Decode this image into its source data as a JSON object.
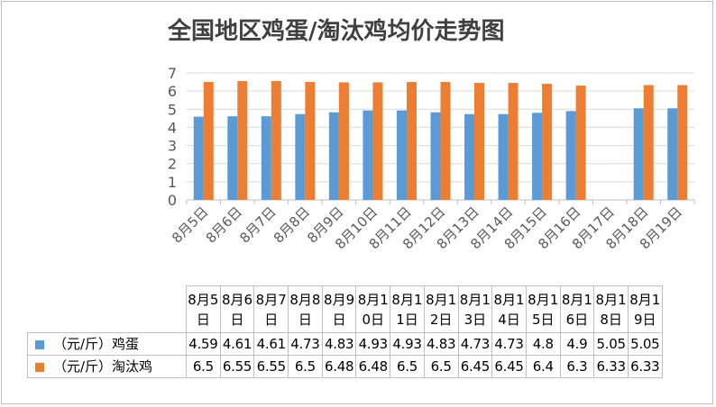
{
  "chart_data": {
    "type": "bar",
    "title": "全国地区鸡蛋/淘汰鸡均价走势图",
    "categories": [
      "8月5日",
      "8月6日",
      "8月7日",
      "8月8日",
      "8月9日",
      "8月10日",
      "8月11日",
      "8月12日",
      "8月13日",
      "8月14日",
      "8月15日",
      "8月16日",
      "8月17日",
      "8月18日",
      "8月19日"
    ],
    "series": [
      {
        "name": "（元/斤）鸡蛋",
        "color": "#5b9bd5",
        "values": [
          4.59,
          4.61,
          4.61,
          4.73,
          4.83,
          4.93,
          4.93,
          4.83,
          4.73,
          4.73,
          4.8,
          4.9,
          null,
          5.05,
          5.05
        ]
      },
      {
        "name": "（元/斤）淘汰鸡",
        "color": "#ed7d31",
        "values": [
          6.5,
          6.55,
          6.55,
          6.5,
          6.48,
          6.48,
          6.5,
          6.5,
          6.45,
          6.45,
          6.4,
          6.3,
          null,
          6.33,
          6.33
        ]
      }
    ],
    "ylim": [
      0,
      7
    ],
    "yticks": [
      0,
      1,
      2,
      3,
      4,
      5,
      6,
      7
    ],
    "grid": true,
    "legend": "data-table",
    "table": {
      "headers": [
        "8月5日",
        "8月6日",
        "8月7日",
        "8月8日",
        "8月9日",
        "8月10日",
        "8月11日",
        "8月12日",
        "8月13日",
        "8月14日",
        "8月15日",
        "8月16日",
        "8月18日",
        "8月19日"
      ],
      "rows": [
        {
          "label": "（元/斤）鸡蛋",
          "color": "#5b9bd5",
          "values": [
            "4.59",
            "4.61",
            "4.61",
            "4.73",
            "4.83",
            "4.93",
            "4.93",
            "4.83",
            "4.73",
            "4.73",
            "4.8",
            "4.9",
            "5.05",
            "5.05"
          ]
        },
        {
          "label": "（元/斤）淘汰鸡",
          "color": "#ed7d31",
          "values": [
            "6.5",
            "6.55",
            "6.55",
            "6.5",
            "6.48",
            "6.48",
            "6.5",
            "6.5",
            "6.45",
            "6.45",
            "6.4",
            "6.3",
            "6.33",
            "6.33"
          ]
        }
      ]
    }
  }
}
